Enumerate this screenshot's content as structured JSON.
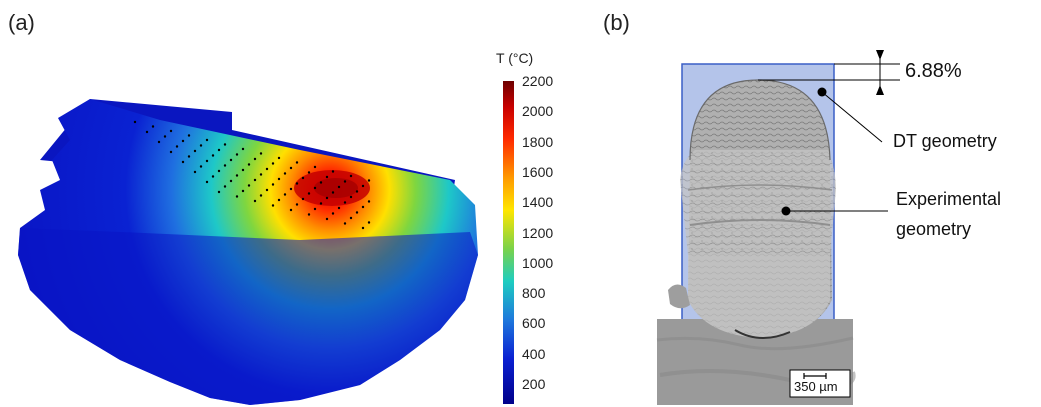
{
  "panels": {
    "a_label": "(a)",
    "b_label": "(b)"
  },
  "colorbar": {
    "title": "T (°C)",
    "ticks": [
      "2200",
      "2000",
      "1800",
      "1600",
      "1400",
      "1200",
      "1000",
      "800",
      "600",
      "400",
      "200"
    ],
    "colors": [
      "#7a0000",
      "#e60000",
      "#ff6600",
      "#ffd200",
      "#7ad24a",
      "#1ecdc0",
      "#1e78dc",
      "#0a1ed2",
      "#00008c"
    ]
  },
  "annotations": {
    "percentage": "6.88%",
    "dt_geometry": "DT geometry",
    "experimental_line1": "Experimental",
    "experimental_line2": "geometry",
    "scale_bar": "350 µm"
  },
  "colors": {
    "background_blue": "#0a1ad0",
    "dt_rect_fill": "#b4c4ea",
    "dt_rect_stroke": "#3a5fc6"
  }
}
